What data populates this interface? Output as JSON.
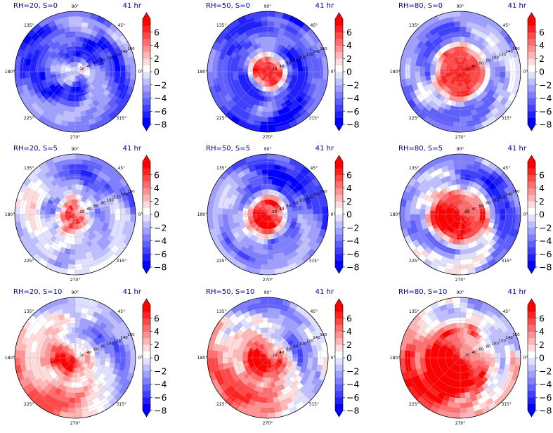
{
  "figure": {
    "time_label": "41 hr",
    "colorbar_ticks": [
      "6",
      "4",
      "2",
      "0",
      "−2",
      "−4",
      "−6",
      "−8"
    ],
    "colorbar_levels": [
      -8,
      -7,
      -6,
      -5,
      -4,
      -3,
      -2,
      -1,
      0,
      1,
      2,
      3,
      4,
      5,
      6,
      7
    ],
    "palette": {
      "min": "#0000ff",
      "mid": "#ffffff",
      "max": "#ff0000"
    },
    "angle_labels": [
      "90°",
      "45°",
      "0°",
      "315°",
      "270°",
      "225°",
      "180°",
      "135°"
    ],
    "radial_labels": [
      "20",
      "40",
      "60",
      "80",
      "100",
      "120",
      "140",
      "160"
    ]
  },
  "chart_data": [
    {
      "type": "heatmap",
      "title": "RH=20, S=0",
      "projection": "polar",
      "rh": 20,
      "s": 0,
      "core_value": 0,
      "core_radius": 10,
      "field_mean": -4.5
    },
    {
      "type": "heatmap",
      "title": "RH=50, S=0",
      "projection": "polar",
      "rh": 50,
      "s": 0,
      "core_value": 7,
      "core_radius": 25,
      "field_mean": -5.0
    },
    {
      "type": "heatmap",
      "title": "RH=80, S=0",
      "projection": "polar",
      "rh": 80,
      "s": 0,
      "core_value": 7,
      "core_radius": 50,
      "field_mean": -3.0
    },
    {
      "type": "heatmap",
      "title": "RH=20, S=5",
      "projection": "polar",
      "rh": 20,
      "s": 5,
      "core_value": 5,
      "core_radius": 20,
      "field_mean": -2.0
    },
    {
      "type": "heatmap",
      "title": "RH=50, S=5",
      "projection": "polar",
      "rh": 50,
      "s": 5,
      "core_value": 7,
      "core_radius": 30,
      "field_mean": -4.0
    },
    {
      "type": "heatmap",
      "title": "RH=80, S=5",
      "projection": "polar",
      "rh": 80,
      "s": 5,
      "core_value": 7,
      "core_radius": 55,
      "field_mean": -2.5
    },
    {
      "type": "heatmap",
      "title": "RH=20, S=10",
      "projection": "polar",
      "rh": 20,
      "s": 10,
      "core_value": 5,
      "core_radius": 25,
      "field_mean": 0.5
    },
    {
      "type": "heatmap",
      "title": "RH=50, S=10",
      "projection": "polar",
      "rh": 50,
      "s": 10,
      "core_value": 7,
      "core_radius": 30,
      "field_mean": 0.5
    },
    {
      "type": "heatmap",
      "title": "RH=80, S=10",
      "projection": "polar",
      "rh": 80,
      "s": 10,
      "core_value": 7,
      "core_radius": 70,
      "field_mean": 2.0
    }
  ]
}
